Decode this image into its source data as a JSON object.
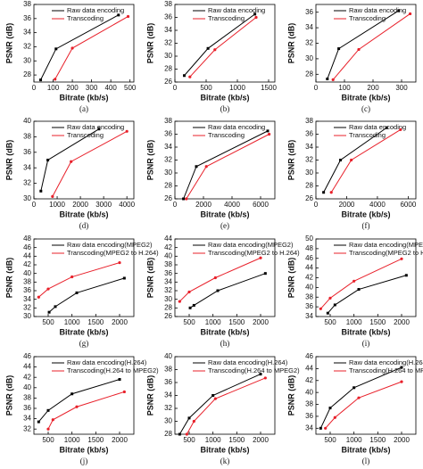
{
  "chart_data": [
    {
      "type": "line",
      "label": "(a)",
      "x_label": "Bitrate (kb/s)",
      "y_label": "PSNR (dB)",
      "xlim": [
        0,
        520
      ],
      "ylim": [
        27,
        38
      ],
      "xticks": [
        0,
        100,
        200,
        300,
        400,
        500
      ],
      "yticks": [
        28,
        30,
        32,
        34,
        36,
        38
      ],
      "series": [
        {
          "name": "Raw data encoding",
          "color": "#000000",
          "x": [
            35,
            115,
            440
          ],
          "values": [
            27.3,
            31.7,
            36.5
          ]
        },
        {
          "name": "Transcoding",
          "color": "#e8202a",
          "x": [
            110,
            200,
            490
          ],
          "values": [
            27.4,
            31.8,
            36.3
          ]
        }
      ]
    },
    {
      "type": "line",
      "label": "(b)",
      "x_label": "Bitrate (kb/s)",
      "y_label": "PSNR (dB)",
      "xlim": [
        0,
        1600
      ],
      "ylim": [
        26,
        38
      ],
      "xticks": [
        0,
        500,
        1000,
        1500
      ],
      "yticks": [
        26,
        28,
        30,
        32,
        34,
        36,
        38
      ],
      "series": [
        {
          "name": "Raw data encoding",
          "color": "#000000",
          "x": [
            150,
            530,
            1280
          ],
          "values": [
            27,
            31.2,
            36.5
          ]
        },
        {
          "name": "Transcoding",
          "color": "#e8202a",
          "x": [
            240,
            640,
            1300
          ],
          "values": [
            26.8,
            31,
            36
          ]
        }
      ]
    },
    {
      "type": "line",
      "label": "(c)",
      "x_label": "Bitrate (kb/s)",
      "y_label": "PSNR (dB)",
      "xlim": [
        0,
        350
      ],
      "ylim": [
        27,
        37
      ],
      "xticks": [
        0,
        100,
        200,
        300
      ],
      "yticks": [
        28,
        30,
        32,
        34,
        36
      ],
      "series": [
        {
          "name": "Raw data encoding",
          "color": "#000000",
          "x": [
            40,
            80,
            290
          ],
          "values": [
            27.4,
            31.3,
            36.2
          ]
        },
        {
          "name": "Transcoding",
          "color": "#e8202a",
          "x": [
            60,
            150,
            330
          ],
          "values": [
            27.3,
            31.2,
            35.8
          ]
        }
      ]
    },
    {
      "type": "line",
      "label": "(d)",
      "x_label": "Bitrate (kb/s)",
      "y_label": "PSNR (dB)",
      "xlim": [
        0,
        4300
      ],
      "ylim": [
        30,
        40
      ],
      "xticks": [
        0,
        1000,
        2000,
        3000,
        4000
      ],
      "yticks": [
        30,
        32,
        34,
        36,
        38,
        40
      ],
      "series": [
        {
          "name": "Raw data encoding",
          "color": "#000000",
          "x": [
            300,
            600,
            2800
          ],
          "values": [
            31,
            35,
            39
          ]
        },
        {
          "name": "Transcoding",
          "color": "#e8202a",
          "x": [
            800,
            1600,
            4000
          ],
          "values": [
            30.3,
            34.8,
            38.7
          ]
        }
      ]
    },
    {
      "type": "line",
      "label": "(e)",
      "x_label": "Bitrate (kb/s)",
      "y_label": "PSNR (dB)",
      "xlim": [
        0,
        7000
      ],
      "ylim": [
        26,
        38
      ],
      "xticks": [
        0,
        2000,
        4000,
        6000
      ],
      "yticks": [
        26,
        28,
        30,
        32,
        34,
        36,
        38
      ],
      "series": [
        {
          "name": "Raw data encoding",
          "color": "#000000",
          "x": [
            600,
            1500,
            6500
          ],
          "values": [
            26,
            31,
            36.5
          ]
        },
        {
          "name": "Transcoding",
          "color": "#e8202a",
          "x": [
            800,
            2200,
            6600
          ],
          "values": [
            26,
            31,
            36
          ]
        }
      ]
    },
    {
      "type": "line",
      "label": "(f)",
      "x_label": "Bitrate (kb/s)",
      "y_label": "PSNR (dB)",
      "xlim": [
        0,
        6500
      ],
      "ylim": [
        26,
        38
      ],
      "xticks": [
        0,
        2000,
        4000,
        6000
      ],
      "yticks": [
        26,
        28,
        30,
        32,
        34,
        36,
        38
      ],
      "series": [
        {
          "name": "Raw data encoding",
          "color": "#000000",
          "x": [
            500,
            1600,
            4600
          ],
          "values": [
            27,
            32,
            37
          ]
        },
        {
          "name": "Transcoding",
          "color": "#e8202a",
          "x": [
            1000,
            2300,
            5500
          ],
          "values": [
            27,
            32,
            36.7
          ]
        }
      ]
    },
    {
      "type": "line",
      "label": "(g)",
      "x_label": "Bitrate (kb/s)",
      "y_label": "PSNR (dB)",
      "xlim": [
        200,
        2300
      ],
      "ylim": [
        30,
        48
      ],
      "xticks": [
        500,
        1000,
        1500,
        2000
      ],
      "yticks": [
        30,
        32,
        34,
        36,
        38,
        40,
        42,
        44,
        46,
        48
      ],
      "series": [
        {
          "name": "Raw data encoding(MPEG2)",
          "color": "#000000",
          "x": [
            520,
            650,
            1100,
            2100
          ],
          "values": [
            31,
            32.3,
            35.5,
            38.9
          ]
        },
        {
          "name": "Transcoding(MPEG2 to H.264)",
          "color": "#e8202a",
          "x": [
            300,
            500,
            1000,
            2000
          ],
          "values": [
            34.5,
            36.4,
            39.2,
            42.5
          ]
        }
      ]
    },
    {
      "type": "line",
      "label": "(h)",
      "x_label": "Bitrate (kb/s)",
      "y_label": "PSNR (dB)",
      "xlim": [
        200,
        2300
      ],
      "ylim": [
        26,
        44
      ],
      "xticks": [
        500,
        1000,
        1500,
        2000
      ],
      "yticks": [
        26,
        28,
        30,
        32,
        34,
        36,
        38,
        40,
        42,
        44
      ],
      "series": [
        {
          "name": "Raw data encoding(MPEG2)",
          "color": "#000000",
          "x": [
            520,
            600,
            1100,
            2100
          ],
          "values": [
            28,
            28.6,
            32,
            36
          ]
        },
        {
          "name": "Transcoding(MPEG2 to H.264)",
          "color": "#e8202a",
          "x": [
            300,
            500,
            1050,
            2000
          ],
          "values": [
            29.5,
            31.7,
            35,
            39.6
          ]
        }
      ]
    },
    {
      "type": "line",
      "label": "(i)",
      "x_label": "Bitrate (kb/s)",
      "y_label": "PSNR (dB)",
      "xlim": [
        200,
        2300
      ],
      "ylim": [
        34,
        50
      ],
      "xticks": [
        500,
        1000,
        1500,
        2000
      ],
      "yticks": [
        34,
        36,
        38,
        40,
        42,
        44,
        46,
        48,
        50
      ],
      "series": [
        {
          "name": "Raw data encoding(MPEG2)",
          "color": "#000000",
          "x": [
            450,
            600,
            1100,
            2100
          ],
          "values": [
            34.7,
            36.4,
            39.6,
            42.5
          ]
        },
        {
          "name": "Transcoding(MPEG2 to H.264)",
          "color": "#e8202a",
          "x": [
            300,
            500,
            1000,
            2000
          ],
          "values": [
            35.6,
            37.8,
            41.3,
            45.9
          ]
        }
      ]
    },
    {
      "type": "line",
      "label": "(j)",
      "x_label": "Bitrate (kb/s)",
      "y_label": "PSNR (dB)",
      "xlim": [
        200,
        2300
      ],
      "ylim": [
        31,
        46
      ],
      "xticks": [
        500,
        1000,
        1500,
        2000
      ],
      "yticks": [
        32,
        34,
        36,
        38,
        40,
        42,
        44,
        46
      ],
      "series": [
        {
          "name": "Raw data encoding(H.264)",
          "color": "#000000",
          "x": [
            300,
            500,
            1000,
            2000
          ],
          "values": [
            33.4,
            35.6,
            38.8,
            41.6
          ]
        },
        {
          "name": "Transcoding(H.264 to MPEG2)",
          "color": "#e8202a",
          "x": [
            500,
            600,
            1100,
            2100
          ],
          "values": [
            32,
            33.8,
            36.3,
            39.2
          ]
        }
      ]
    },
    {
      "type": "line",
      "label": "(k)",
      "x_label": "Bitrate (kb/s)",
      "y_label": "PSNR (dB)",
      "xlim": [
        200,
        2300
      ],
      "ylim": [
        28,
        40
      ],
      "xticks": [
        500,
        1000,
        1500,
        2000
      ],
      "yticks": [
        28,
        30,
        32,
        34,
        36,
        38,
        40
      ],
      "series": [
        {
          "name": "Raw data encoding(H.264)",
          "color": "#000000",
          "x": [
            300,
            500,
            1000,
            2000
          ],
          "values": [
            28,
            30.5,
            34,
            37.3
          ]
        },
        {
          "name": "Transcoding(H.264 to MPEG2)",
          "color": "#e8202a",
          "x": [
            450,
            600,
            1050,
            2100
          ],
          "values": [
            28,
            30,
            33.5,
            36.7
          ]
        }
      ]
    },
    {
      "type": "line",
      "label": "(l)",
      "x_label": "Bitrate (kb/s)",
      "y_label": "PSNR (dB)",
      "xlim": [
        200,
        2300
      ],
      "ylim": [
        33,
        46
      ],
      "xticks": [
        500,
        1000,
        1500,
        2000
      ],
      "yticks": [
        34,
        36,
        38,
        40,
        42,
        44,
        46
      ],
      "series": [
        {
          "name": "Raw data encoding(H.264)",
          "color": "#000000",
          "x": [
            300,
            500,
            1000,
            2000
          ],
          "values": [
            34,
            37.4,
            40.8,
            44.2
          ]
        },
        {
          "name": "Transcoding(H.264 to MPEG2)",
          "color": "#e8202a",
          "x": [
            400,
            600,
            1100,
            2000
          ],
          "values": [
            34,
            35.8,
            39.1,
            41.8
          ]
        }
      ]
    }
  ]
}
